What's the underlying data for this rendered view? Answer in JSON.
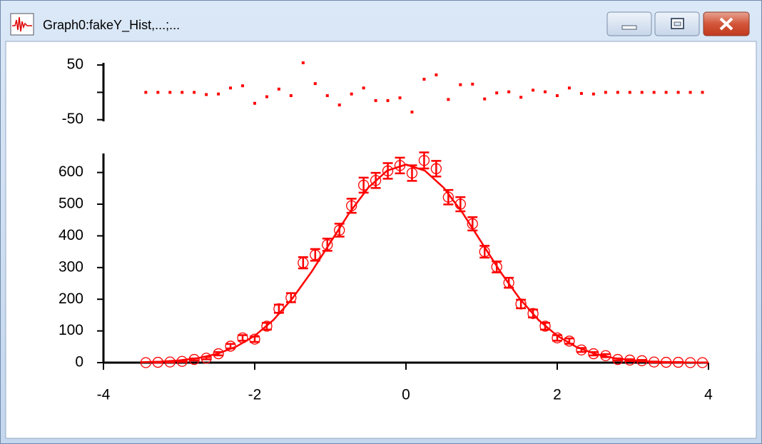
{
  "window": {
    "title": "Graph0:fakeY_Hist,...;..."
  },
  "chart_data": [
    {
      "type": "scatter",
      "color": "#ff0000",
      "marker": "square",
      "x": [
        -3.44,
        -3.28,
        -3.12,
        -2.96,
        -2.8,
        -2.64,
        -2.48,
        -2.32,
        -2.16,
        -2.0,
        -1.84,
        -1.68,
        -1.52,
        -1.36,
        -1.2,
        -1.04,
        -0.88,
        -0.72,
        -0.56,
        -0.4,
        -0.24,
        -0.08,
        0.08,
        0.24,
        0.4,
        0.56,
        0.72,
        0.88,
        1.04,
        1.2,
        1.36,
        1.52,
        1.68,
        1.84,
        2.0,
        2.16,
        2.32,
        2.48,
        2.64,
        2.8,
        2.96,
        3.12,
        3.28,
        3.44,
        3.6,
        3.76,
        3.92
      ],
      "values": [
        0,
        0,
        0,
        0,
        0,
        -4,
        -3,
        8,
        12,
        -20,
        -8,
        6,
        -6,
        54,
        16,
        -6,
        -23,
        -3,
        8,
        -15,
        -15,
        -10,
        -36,
        24,
        32,
        -13,
        14,
        15,
        -12,
        -1,
        1,
        -9,
        4,
        1,
        -6,
        8,
        -2,
        -3,
        0,
        0,
        0,
        0,
        0,
        0,
        0,
        0,
        0
      ],
      "xlim": [
        -4,
        4
      ],
      "ylim": [
        -53,
        54
      ],
      "yticks": [
        -50,
        {
          "value": 0,
          "label": null
        },
        50
      ]
    },
    {
      "type": "scatter",
      "color": "#ff0000",
      "marker": "open-circle",
      "x": [
        -3.44,
        -3.28,
        -3.12,
        -2.96,
        -2.8,
        -2.64,
        -2.48,
        -2.32,
        -2.16,
        -2.0,
        -1.84,
        -1.68,
        -1.52,
        -1.36,
        -1.2,
        -1.04,
        -0.88,
        -0.72,
        -0.56,
        -0.4,
        -0.24,
        -0.08,
        0.08,
        0.24,
        0.4,
        0.56,
        0.72,
        0.88,
        1.04,
        1.2,
        1.36,
        1.52,
        1.68,
        1.84,
        2.0,
        2.16,
        2.32,
        2.48,
        2.64,
        2.8,
        2.96,
        3.12,
        3.28,
        3.44,
        3.6,
        3.76,
        3.92
      ],
      "values": [
        0,
        1,
        2,
        4,
        10,
        14,
        28,
        52,
        78,
        74,
        115,
        170,
        205,
        315,
        340,
        372,
        418,
        495,
        560,
        575,
        605,
        622,
        598,
        638,
        612,
        522,
        500,
        438,
        350,
        302,
        252,
        185,
        155,
        115,
        78,
        68,
        40,
        28,
        22,
        10,
        8,
        6,
        2,
        1,
        1,
        0,
        0
      ],
      "errors": [
        0,
        1,
        1.4,
        2,
        3.2,
        3.7,
        5.3,
        7.2,
        8.8,
        8.6,
        10.7,
        13,
        14.3,
        17.7,
        18.4,
        19.3,
        20.4,
        22.2,
        23.7,
        24,
        24.6,
        24.9,
        24.5,
        25.3,
        24.7,
        22.8,
        22.4,
        20.9,
        18.7,
        17.4,
        15.9,
        13.6,
        12.4,
        10.7,
        8.8,
        8.2,
        6.3,
        5.3,
        4.7,
        3.2,
        2.8,
        2.4,
        1.4,
        1,
        1,
        0,
        0
      ],
      "fit": {
        "x": [
          -3.5,
          -3.25,
          -3,
          -2.75,
          -2.5,
          -2.25,
          -2,
          -1.75,
          -1.5,
          -1.25,
          -1,
          -0.75,
          -0.5,
          -0.25,
          0,
          0.25,
          0.5,
          0.75,
          1,
          1.25,
          1.5,
          1.75,
          2,
          2.25,
          2.5,
          2.75,
          3,
          3.25,
          3.5,
          3.75,
          4
        ],
        "values": [
          1.4,
          3.2,
          6.9,
          14.3,
          27.4,
          49.7,
          84.6,
          135.2,
          202.9,
          286.1,
          379.1,
          471.8,
          551.6,
          605.8,
          625,
          605.8,
          551.6,
          471.8,
          379.1,
          286.1,
          202.9,
          135.2,
          84.6,
          49.7,
          27.4,
          14.3,
          6.9,
          3.2,
          1.4,
          0.6,
          0.2
        ]
      },
      "xlim": [
        -4,
        4
      ],
      "ylim": [
        0,
        660
      ],
      "xticks": [
        -4,
        -2,
        0,
        2,
        4
      ],
      "yticks": [
        0,
        100,
        200,
        300,
        400,
        500,
        600
      ]
    }
  ]
}
